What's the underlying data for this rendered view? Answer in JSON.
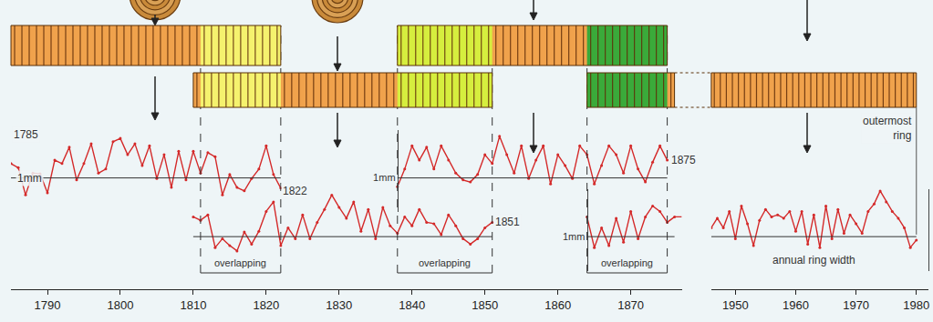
{
  "chart_data": [
    {
      "type": "line",
      "xlim": [
        1785,
        1877
      ],
      "xticks": [
        1790,
        1800,
        1810,
        1820,
        1830,
        1840,
        1850,
        1860,
        1870
      ],
      "ylim": [
        0.5,
        1.7
      ],
      "yticks": [
        {
          "value": 1,
          "label": "1mm"
        }
      ],
      "y2lim": [
        0.5,
        1.7
      ],
      "y2ticks": [
        {
          "value": 1,
          "label": "1mm"
        }
      ],
      "color": "#d42a2a",
      "marker": "circle",
      "series": [
        {
          "x": [
            1785,
            1786,
            1787,
            1788,
            1789,
            1790,
            1791,
            1792,
            1793,
            1794,
            1795,
            1796,
            1797,
            1798,
            1799,
            1800,
            1801,
            1802,
            1803,
            1804,
            1805,
            1806,
            1807,
            1808,
            1809,
            1810,
            1811,
            1812,
            1813,
            1814,
            1815,
            1816,
            1817,
            1818,
            1819,
            1820,
            1821,
            1822
          ],
          "values": [
            1.21,
            1.15,
            0.75,
            1.07,
            1.06,
            0.78,
            1.26,
            1.21,
            1.45,
            0.97,
            1.21,
            1.5,
            1.07,
            1.13,
            1.53,
            1.58,
            1.34,
            1.5,
            1.18,
            1.47,
            0.99,
            1.34,
            0.86,
            1.39,
            0.97,
            1.39,
            1.07,
            1.37,
            1.31,
            0.75,
            1.05,
            0.86,
            0.81,
            0.99,
            1.13,
            1.47,
            1.05,
            0.85
          ],
          "circled": [
            1822
          ]
        },
        {
          "x": [
            1810,
            1811,
            1812,
            1813,
            1814,
            1815,
            1816,
            1817,
            1818,
            1819,
            1820,
            1821,
            1822,
            1823,
            1824,
            1825,
            1826,
            1827,
            1828,
            1829,
            1830,
            1831,
            1832,
            1833,
            1834,
            1835,
            1836,
            1837,
            1838,
            1839,
            1840,
            1841,
            1842,
            1843,
            1844,
            1845,
            1846,
            1847,
            1848,
            1849,
            1850,
            1851
          ],
          "values": [
            1.29,
            1.24,
            1.32,
            0.84,
            0.97,
            0.87,
            0.79,
            1.07,
            0.89,
            1.08,
            1.37,
            1.51,
            0.87,
            1.13,
            0.97,
            1.32,
            0.97,
            1.21,
            1.4,
            1.61,
            1.43,
            1.27,
            1.51,
            1.08,
            1.4,
            0.97,
            1.43,
            1.16,
            1.05,
            1.29,
            1.16,
            1.4,
            1.21,
            1.19,
            1.03,
            1.32,
            1.16,
            0.97,
            0.89,
            0.97,
            1.13,
            1.21
          ],
          "axis": "y2",
          "circled": [
            1851
          ]
        },
        {
          "x": [
            1838,
            1839,
            1840,
            1841,
            1842,
            1843,
            1844,
            1845,
            1846,
            1847,
            1848,
            1849,
            1850,
            1851,
            1852,
            1853,
            1854,
            1855,
            1856,
            1857,
            1858,
            1859,
            1860,
            1861,
            1862,
            1863,
            1864,
            1865,
            1866,
            1867,
            1868,
            1869,
            1870,
            1871,
            1872,
            1873,
            1874,
            1875
          ],
          "values": [
            0.87,
            1.13,
            1.47,
            1.26,
            1.45,
            1.13,
            1.47,
            1.26,
            1.07,
            0.97,
            0.94,
            1.05,
            1.34,
            1.21,
            1.61,
            1.34,
            1.07,
            1.47,
            0.99,
            1.26,
            1.47,
            0.91,
            1.34,
            1.18,
            0.99,
            1.47,
            1.34,
            0.91,
            1.18,
            1.47,
            1.34,
            1.07,
            1.47,
            1.13,
            0.94,
            1.23,
            1.47,
            1.26
          ],
          "circled": [
            1875
          ]
        },
        {
          "x": [
            1864,
            1865,
            1866,
            1867,
            1868,
            1869,
            1870,
            1871,
            1872,
            1873,
            1874,
            1875,
            1876
          ],
          "values": [
            1.29,
            0.84,
            1.13,
            0.87,
            1.27,
            0.92,
            1.37,
            0.97,
            1.29,
            1.45,
            1.37,
            1.21,
            1.29
          ],
          "axis": "y2"
        }
      ],
      "annotations": [
        {
          "text": "1785",
          "x": 1787,
          "y": 1.63,
          "axis": "y"
        },
        {
          "text": "1mm",
          "x": 1787.5,
          "y": 1,
          "axis": "y"
        },
        {
          "text": "1822",
          "x": 1824,
          "y": 0.81,
          "axis": "y"
        },
        {
          "text": "1851",
          "x": 1853.1,
          "y": 1.21,
          "axis": "y2"
        },
        {
          "text": "1875",
          "x": 1877.3,
          "y": 1.26,
          "axis": "y"
        }
      ],
      "overlaps": [
        {
          "from": 1811,
          "to": 1822,
          "label": "overlapping",
          "color": "#f5f26e"
        },
        {
          "from": 1838,
          "to": 1851,
          "label": "overlapping",
          "color": "#d6ee3e"
        },
        {
          "from": 1864,
          "to": 1875,
          "label": "overlapping",
          "color": "#3aaa3a"
        }
      ]
    },
    {
      "type": "line",
      "xlim": [
        1946,
        1982
      ],
      "xticks": [
        1950,
        1960,
        1970,
        1980
      ],
      "ylim": [
        0.5,
        1.7
      ],
      "yticks": [
        1
      ],
      "tick_labels": "x",
      "color": "#d42a2a",
      "marker": "circle",
      "series": [
        {
          "x": [
            1946,
            1947,
            1948,
            1949,
            1950,
            1951,
            1952,
            1953,
            1954,
            1955,
            1956,
            1957,
            1958,
            1959,
            1960,
            1961,
            1962,
            1963,
            1964,
            1965,
            1966,
            1967,
            1968,
            1969,
            1970,
            1971,
            1972,
            1973,
            1974,
            1975,
            1976,
            1977,
            1978,
            1979,
            1980
          ],
          "values": [
            1.13,
            1.27,
            1.13,
            1.37,
            0.97,
            1.45,
            1.19,
            0.87,
            1.24,
            1.4,
            1.29,
            1.32,
            1.27,
            1.37,
            1.08,
            1.37,
            0.89,
            1.32,
            0.84,
            1.45,
            0.97,
            1.4,
            1.05,
            1.32,
            1.19,
            1.05,
            1.37,
            1.48,
            1.67,
            1.51,
            1.37,
            1.27,
            1.13,
            0.84,
            0.95
          ],
          "circled": [
            1980
          ]
        }
      ],
      "annotations": [
        {
          "text": "annual ring width",
          "x": 1963.1,
          "y": 0.66
        },
        {
          "text": "outermost\nring",
          "x": 1975.2,
          "y": 2.59
        }
      ]
    }
  ]
}
